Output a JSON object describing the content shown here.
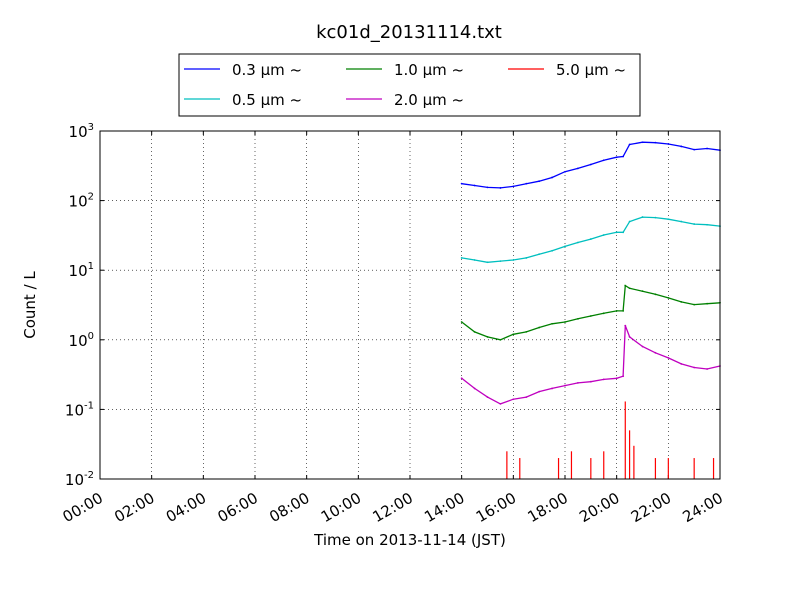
{
  "chart_data": {
    "type": "line",
    "title": "kc01d_20131114.txt",
    "xlabel": "Time on 2013-11-14 (JST)",
    "ylabel": "Count / L",
    "yscale": "log",
    "xlim": [
      "00:00",
      "24:00"
    ],
    "ylim": [
      0.01,
      1000
    ],
    "grid": true,
    "legend_position": "top",
    "x_ticks": [
      "00:00",
      "02:00",
      "04:00",
      "06:00",
      "08:00",
      "10:00",
      "12:00",
      "14:00",
      "16:00",
      "18:00",
      "20:00",
      "22:00",
      "24:00"
    ],
    "y_ticks": [
      {
        "value": 0.01,
        "base": "10",
        "exp": "-2"
      },
      {
        "value": 0.1,
        "base": "10",
        "exp": "-1"
      },
      {
        "value": 1,
        "base": "10",
        "exp": "0"
      },
      {
        "value": 10,
        "base": "10",
        "exp": "1"
      },
      {
        "value": 100,
        "base": "10",
        "exp": "2"
      },
      {
        "value": 1000,
        "base": "10",
        "exp": "3"
      }
    ],
    "series": [
      {
        "name": "0.3 μm ~",
        "color": "#0000ff",
        "x": [
          "14:00",
          "14:30",
          "15:00",
          "15:30",
          "16:00",
          "16:30",
          "17:00",
          "17:30",
          "18:00",
          "18:30",
          "19:00",
          "19:30",
          "20:00",
          "20:15",
          "20:30",
          "21:00",
          "21:30",
          "22:00",
          "22:30",
          "23:00",
          "23:30",
          "24:00"
        ],
        "y": [
          175,
          165,
          155,
          152,
          160,
          175,
          190,
          215,
          260,
          290,
          330,
          380,
          420,
          430,
          640,
          690,
          680,
          650,
          600,
          540,
          560,
          530
        ]
      },
      {
        "name": "0.5 μm ~",
        "color": "#00bfbf",
        "x": [
          "14:00",
          "14:30",
          "15:00",
          "15:30",
          "16:00",
          "16:30",
          "17:00",
          "17:30",
          "18:00",
          "18:30",
          "19:00",
          "19:30",
          "20:00",
          "20:15",
          "20:30",
          "21:00",
          "21:30",
          "22:00",
          "22:30",
          "23:00",
          "23:30",
          "24:00"
        ],
        "y": [
          15,
          14,
          13,
          13.5,
          14,
          15,
          17,
          19,
          22,
          25,
          28,
          32,
          35,
          35,
          50,
          58,
          57,
          54,
          50,
          46,
          45,
          43
        ]
      },
      {
        "name": "1.0 μm ~",
        "color": "#008000",
        "x": [
          "14:00",
          "14:30",
          "15:00",
          "15:30",
          "16:00",
          "16:30",
          "17:00",
          "17:30",
          "18:00",
          "18:30",
          "19:00",
          "19:30",
          "20:00",
          "20:15",
          "20:20",
          "20:30",
          "21:00",
          "21:30",
          "22:00",
          "22:30",
          "23:00",
          "23:30",
          "24:00"
        ],
        "y": [
          1.8,
          1.3,
          1.1,
          1.0,
          1.2,
          1.3,
          1.5,
          1.7,
          1.8,
          2.0,
          2.2,
          2.4,
          2.6,
          2.6,
          6.0,
          5.5,
          5.0,
          4.5,
          4.0,
          3.5,
          3.2,
          3.3,
          3.4
        ]
      },
      {
        "name": "2.0 μm ~",
        "color": "#bf00bf",
        "x": [
          "14:00",
          "14:30",
          "15:00",
          "15:30",
          "16:00",
          "16:30",
          "17:00",
          "17:30",
          "18:00",
          "18:30",
          "19:00",
          "19:30",
          "20:00",
          "20:15",
          "20:20",
          "20:30",
          "21:00",
          "21:30",
          "22:00",
          "22:30",
          "23:00",
          "23:30",
          "24:00"
        ],
        "y": [
          0.28,
          0.2,
          0.15,
          0.12,
          0.14,
          0.15,
          0.18,
          0.2,
          0.22,
          0.24,
          0.25,
          0.27,
          0.28,
          0.3,
          1.6,
          1.1,
          0.8,
          0.65,
          0.55,
          0.45,
          0.4,
          0.38,
          0.42
        ]
      },
      {
        "name": "5.0 μm ~",
        "color": "#ff0000",
        "x": [
          "15:45",
          "16:15",
          "17:45",
          "18:15",
          "19:00",
          "19:30",
          "20:20",
          "20:30",
          "20:40",
          "21:30",
          "22:00",
          "23:00",
          "23:45"
        ],
        "y": [
          0.025,
          0.02,
          0.02,
          0.025,
          0.02,
          0.025,
          0.13,
          0.05,
          0.03,
          0.02,
          0.02,
          0.02,
          0.02
        ]
      }
    ]
  }
}
